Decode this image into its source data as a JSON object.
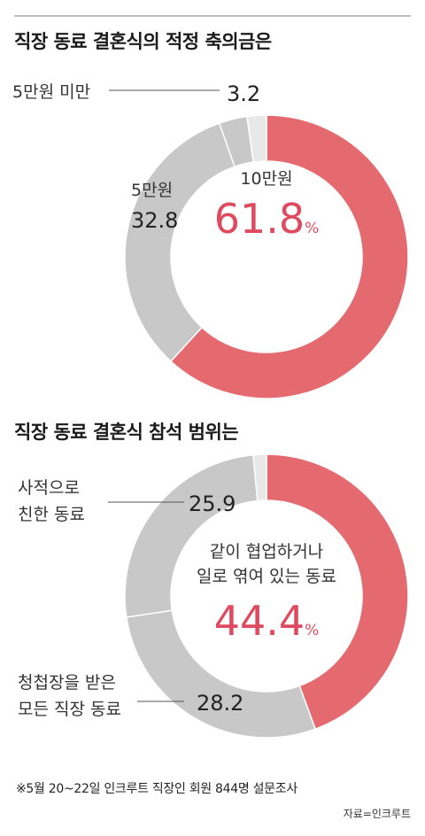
{
  "chart_data": [
    {
      "type": "pie",
      "title": "직장 동료 결혼식의 적정 축의금은",
      "slices": [
        {
          "label": "10만원",
          "value": 61.8,
          "color": "#e56a6f"
        },
        {
          "label": "5만원",
          "value": 32.8,
          "color": "#c8c8c8"
        },
        {
          "label": "5만원 미만",
          "value": 3.2,
          "color": "#c8c8c8"
        },
        {
          "label": "",
          "value": 2.2,
          "color": "#e8e8e8"
        }
      ],
      "center_label": "10만원",
      "center_value": "61.8",
      "unit": "%"
    },
    {
      "type": "pie",
      "title": "직장 동료 결혼식 참석 범위는",
      "slices": [
        {
          "label": "같이 협업하거나 일로 엮여 있는 동료",
          "value": 44.4,
          "color": "#e56a6f"
        },
        {
          "label": "청첩장을 받은 모든 직장 동료",
          "value": 28.2,
          "color": "#c8c8c8"
        },
        {
          "label": "사적으로 친한 동료",
          "value": 25.9,
          "color": "#c8c8c8"
        },
        {
          "label": "",
          "value": 1.5,
          "color": "#e8e8e8"
        }
      ],
      "center_label_lines": [
        "같이 협업하거나",
        "일로 엮여 있는 동료"
      ],
      "center_value": "44.4",
      "unit": "%"
    }
  ],
  "labels": {
    "c1_under5_text": "5만원 미만",
    "c1_under5_value": "3.2",
    "c1_5man_text": "5만원",
    "c1_5man_value": "32.8",
    "c2_friend_line1": "사적으로",
    "c2_friend_line2": "친한 동료",
    "c2_friend_value": "25.9",
    "c2_all_line1": "청첩장을 받은",
    "c2_all_line2": "모든 직장 동료",
    "c2_all_value": "28.2"
  },
  "footnote": "※5월 20~22일 인크루트 직장인 회원 844명 설문조사",
  "source": "자료=인크루트"
}
